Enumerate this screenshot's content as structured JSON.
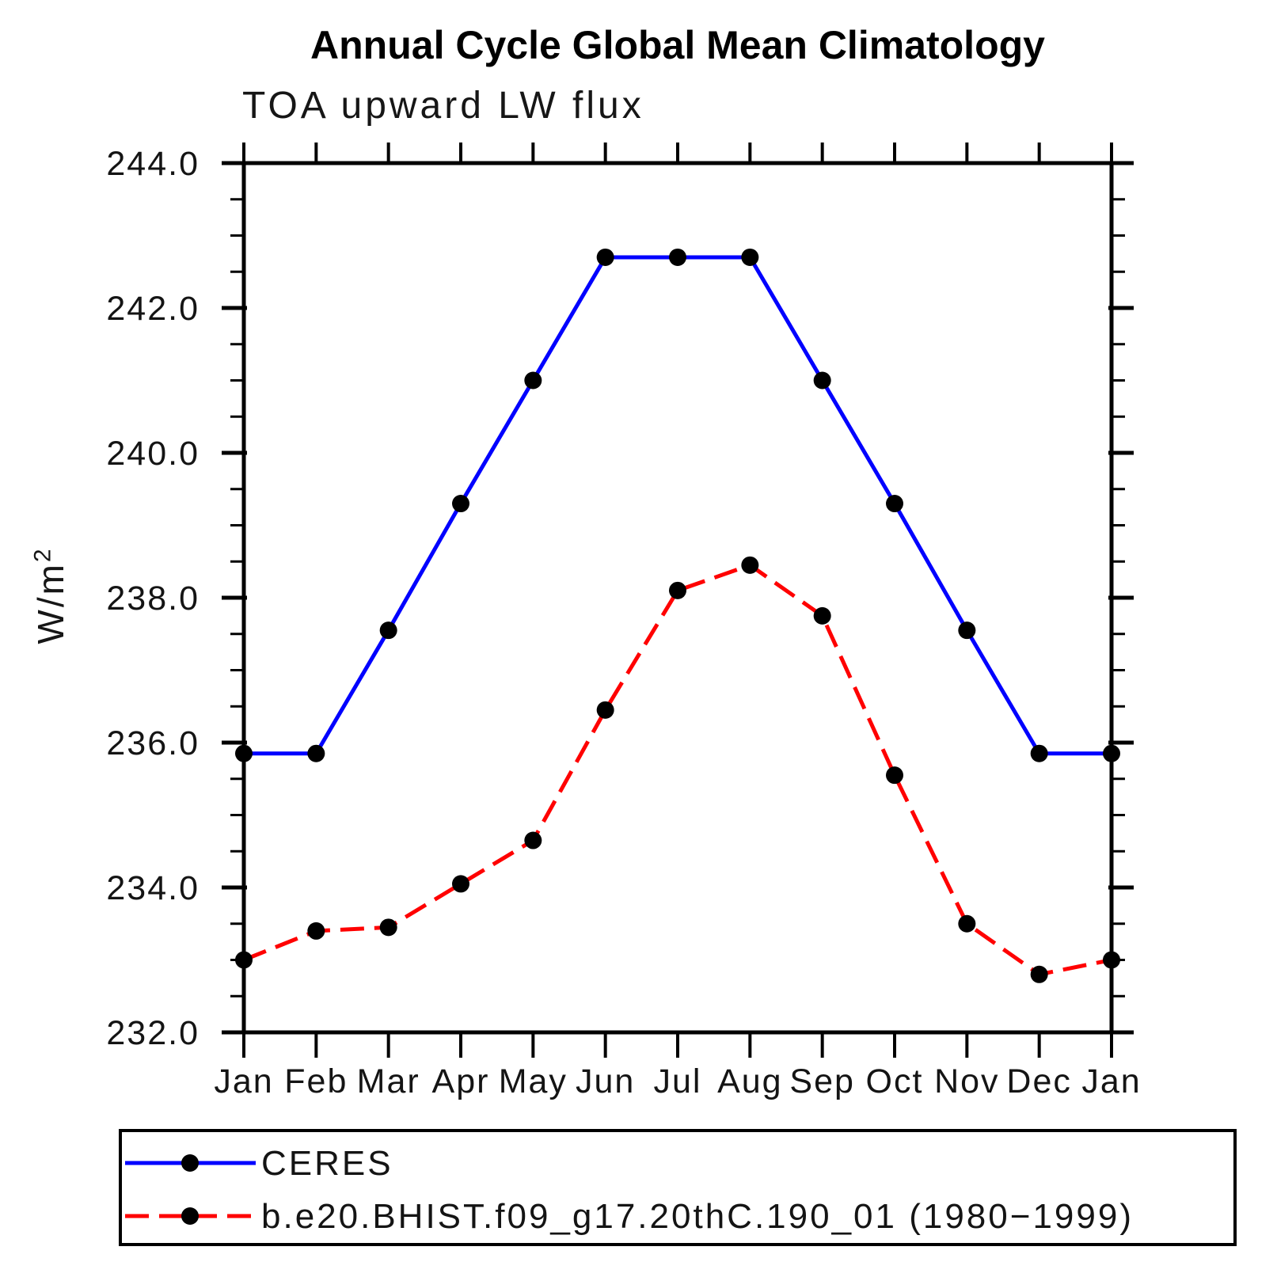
{
  "title": "Annual Cycle Global Mean Climatology",
  "subtitle": "TOA upward LW flux",
  "y_axis": {
    "label_base": "W/m",
    "label_exponent": "2",
    "tick_labels": [
      "244.0",
      "242.0",
      "240.0",
      "238.0",
      "236.0",
      "234.0",
      "232.0"
    ]
  },
  "chart_data": {
    "type": "line",
    "title": "Annual Cycle Global Mean Climatology",
    "subtitle": "TOA upward LW flux",
    "xlabel": "",
    "ylabel": "W/m2",
    "ylim": [
      232.0,
      244.0
    ],
    "y_major_step": 2.0,
    "y_minor_step": 0.5,
    "y_tick_labels": [
      "232.0",
      "234.0",
      "236.0",
      "238.0",
      "240.0",
      "242.0",
      "244.0"
    ],
    "grid": false,
    "legend_position": "bottom-left-box",
    "categories": [
      "Jan",
      "Feb",
      "Mar",
      "Apr",
      "May",
      "Jun",
      "Jul",
      "Aug",
      "Sep",
      "Oct",
      "Nov",
      "Dec",
      "Jan"
    ],
    "series": [
      {
        "name": "CERES",
        "color": "#0000ff",
        "style": "solid",
        "marker": "circle",
        "marker_color": "#000000",
        "values": [
          235.85,
          235.85,
          237.55,
          239.3,
          241.0,
          242.7,
          242.7,
          242.7,
          241.0,
          239.3,
          237.55,
          235.85,
          235.85
        ]
      },
      {
        "name": "b.e20.BHIST.f09_g17.20thC.190_01 (1980−1999)",
        "color": "#ff0000",
        "style": "dashed",
        "marker": "circle",
        "marker_color": "#000000",
        "values": [
          233.0,
          233.4,
          233.45,
          234.05,
          234.65,
          236.45,
          238.1,
          238.45,
          237.75,
          235.55,
          233.5,
          232.8,
          233.0
        ]
      }
    ]
  },
  "legend": {
    "items": [
      {
        "label": "CERES"
      },
      {
        "label": "b.e20.BHIST.f09_g17.20thC.190_01 (1980−1999)"
      }
    ]
  }
}
